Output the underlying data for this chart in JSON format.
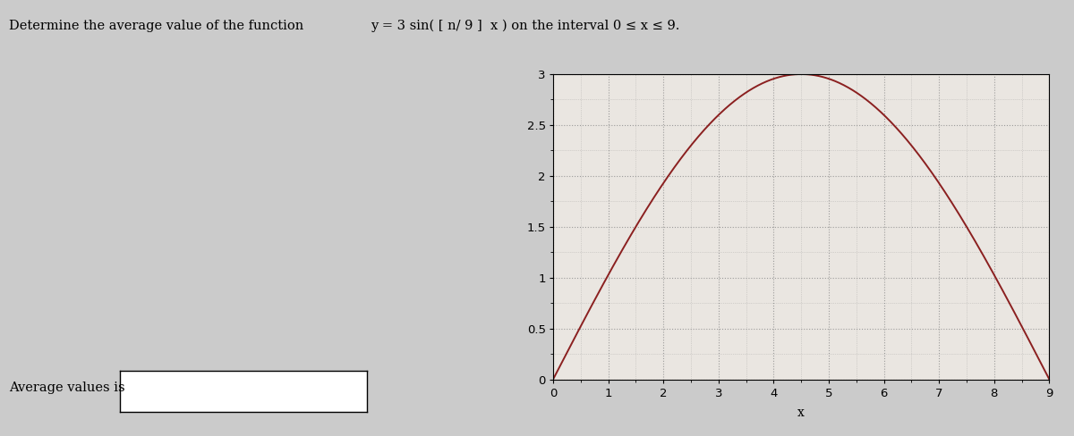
{
  "title_text": "Determine the average value of the function",
  "formula_text": "y = 3 sin( [ n/ 9 ]  x ) on the interval 0 ≤ x ≤ 9.",
  "xlabel": "x",
  "xlim": [
    0,
    9
  ],
  "ylim": [
    0,
    3
  ],
  "xticks": [
    0,
    1,
    2,
    3,
    4,
    5,
    6,
    7,
    8,
    9
  ],
  "yticks": [
    0,
    0.5,
    1,
    1.5,
    2,
    2.5,
    3
  ],
  "ytick_labels": [
    "0",
    "0.5",
    "1",
    "1.5",
    "2",
    "2.5",
    "3"
  ],
  "curve_color": "#8B2020",
  "background_color": "#CBCBCB",
  "plot_bg_color": "#EAE6E1",
  "grid_color": "#888888",
  "avg_label": "Average values is",
  "title_fontsize": 10.5,
  "axis_fontsize": 10,
  "tick_fontsize": 9.5
}
